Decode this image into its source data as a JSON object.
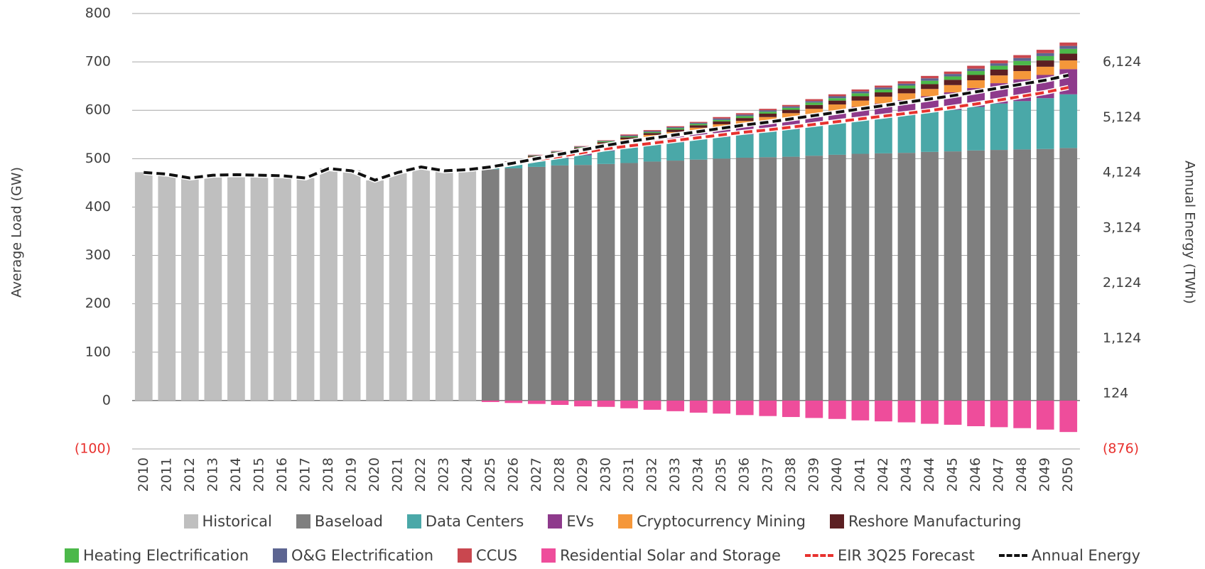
{
  "chart_data": {
    "type": "bar",
    "stacked": true,
    "ylabel": "Average Load (GW)",
    "y2label": "Annual Energy (TWh)",
    "ylim": [
      -100,
      800
    ],
    "yticks": [
      {
        "value": -100,
        "label": "(100)"
      },
      0,
      100,
      200,
      300,
      400,
      500,
      600,
      700,
      800
    ],
    "y2lim": [
      -876,
      7008
    ],
    "y2ticks": [
      {
        "value": -876,
        "label": "(876)"
      },
      124,
      {
        "value": 1124,
        "label": "1,124"
      },
      {
        "value": 2124,
        "label": "2,124"
      },
      {
        "value": 3124,
        "label": "3,124"
      },
      {
        "value": 4124,
        "label": "4,124"
      },
      {
        "value": 5124,
        "label": "5,124"
      },
      {
        "value": 6124,
        "label": "6,124"
      }
    ],
    "negative_tick_color": "#e8322f",
    "grid": true,
    "legend": "bottom",
    "categories": [
      "2010",
      "2011",
      "2012",
      "2013",
      "2014",
      "2015",
      "2016",
      "2017",
      "2018",
      "2019",
      "2020",
      "2021",
      "2022",
      "2023",
      "2024",
      "2025",
      "2026",
      "2027",
      "2028",
      "2029",
      "2030",
      "2031",
      "2032",
      "2033",
      "2034",
      "2035",
      "2036",
      "2037",
      "2038",
      "2039",
      "2040",
      "2041",
      "2042",
      "2043",
      "2044",
      "2045",
      "2046",
      "2047",
      "2048",
      "2049",
      "2050"
    ],
    "series": [
      {
        "name": "Historical",
        "color": "#bfbfbf",
        "values": [
          472,
          468,
          460,
          466,
          466,
          466,
          465,
          460,
          480,
          476,
          455,
          470,
          482,
          475,
          478,
          null,
          null,
          null,
          null,
          null,
          null,
          null,
          null,
          null,
          null,
          null,
          null,
          null,
          null,
          null,
          null,
          null,
          null,
          null,
          null,
          null,
          null,
          null,
          null,
          null,
          null
        ]
      },
      {
        "name": "Baseload",
        "color": "#7f7f7f",
        "values": [
          null,
          null,
          null,
          null,
          null,
          null,
          null,
          null,
          null,
          null,
          null,
          null,
          null,
          null,
          null,
          478,
          480,
          483,
          486,
          487,
          489,
          491,
          494,
          496,
          498,
          500,
          502,
          503,
          504,
          506,
          508,
          510,
          511,
          512,
          514,
          515,
          517,
          518,
          519,
          520,
          522
        ]
      },
      {
        "name": "Data Centers",
        "color": "#4aa8a8",
        "values": [
          null,
          null,
          null,
          null,
          null,
          null,
          null,
          null,
          null,
          null,
          null,
          null,
          null,
          null,
          null,
          3,
          8,
          12,
          15,
          20,
          27,
          32,
          36,
          38,
          42,
          45,
          48,
          53,
          57,
          62,
          66,
          70,
          74,
          78,
          82,
          86,
          90,
          96,
          100,
          105,
          111
        ]
      },
      {
        "name": "EVs",
        "color": "#8e3a8c",
        "values": [
          null,
          null,
          null,
          null,
          null,
          null,
          null,
          null,
          null,
          null,
          null,
          null,
          null,
          null,
          null,
          1,
          2,
          3,
          4,
          6,
          7,
          9,
          10,
          12,
          14,
          16,
          17,
          19,
          21,
          23,
          25,
          27,
          29,
          31,
          33,
          36,
          39,
          42,
          45,
          48,
          52
        ]
      },
      {
        "name": "Cryptocurrency Mining",
        "color": "#f5973a",
        "values": [
          null,
          null,
          null,
          null,
          null,
          null,
          null,
          null,
          null,
          null,
          null,
          null,
          null,
          null,
          null,
          2,
          3,
          5,
          6,
          7,
          8,
          8,
          9,
          9,
          10,
          10,
          11,
          11,
          12,
          12,
          13,
          13,
          14,
          14,
          15,
          15,
          16,
          16,
          17,
          17,
          18
        ]
      },
      {
        "name": "Reshore Manufacturing",
        "color": "#5c1f22",
        "values": [
          null,
          null,
          null,
          null,
          null,
          null,
          null,
          null,
          null,
          null,
          null,
          null,
          null,
          null,
          null,
          1,
          1,
          2,
          2,
          3,
          3,
          4,
          4,
          5,
          5,
          6,
          6,
          7,
          7,
          8,
          8,
          9,
          9,
          10,
          10,
          11,
          11,
          12,
          12,
          13,
          14
        ]
      },
      {
        "name": "Heating Electrification",
        "color": "#4cb84a",
        "values": [
          null,
          null,
          null,
          null,
          null,
          null,
          null,
          null,
          null,
          null,
          null,
          null,
          null,
          null,
          null,
          0,
          0,
          1,
          1,
          1,
          2,
          2,
          2,
          3,
          3,
          3,
          4,
          4,
          4,
          5,
          5,
          6,
          6,
          6,
          7,
          7,
          8,
          8,
          9,
          9,
          10
        ]
      },
      {
        "name": "O&G Electrification",
        "color": "#5d6591",
        "values": [
          null,
          null,
          null,
          null,
          null,
          null,
          null,
          null,
          null,
          null,
          null,
          null,
          null,
          null,
          null,
          0,
          0,
          1,
          1,
          1,
          1,
          2,
          2,
          2,
          2,
          3,
          3,
          3,
          3,
          3,
          4,
          4,
          4,
          4,
          5,
          5,
          5,
          5,
          6,
          6,
          6
        ]
      },
      {
        "name": "CCUS",
        "color": "#c9474f",
        "values": [
          null,
          null,
          null,
          null,
          null,
          null,
          null,
          null,
          null,
          null,
          null,
          null,
          null,
          null,
          null,
          0,
          0,
          1,
          1,
          1,
          1,
          2,
          2,
          2,
          2,
          3,
          3,
          3,
          3,
          4,
          4,
          4,
          4,
          5,
          5,
          5,
          6,
          6,
          6,
          7,
          7
        ]
      },
      {
        "name": "Residential Solar and Storage",
        "color": "#ee4d9b",
        "values": [
          null,
          null,
          null,
          null,
          null,
          null,
          null,
          null,
          null,
          null,
          null,
          null,
          null,
          null,
          null,
          -3,
          -5,
          -7,
          -9,
          -12,
          -13,
          -16,
          -19,
          -22,
          -25,
          -27,
          -30,
          -32,
          -34,
          -36,
          -38,
          -41,
          -43,
          -45,
          -48,
          -50,
          -53,
          -55,
          -57,
          -60,
          -65
        ]
      },
      {
        "name": "EIR 3Q25 Forecast",
        "type": "line",
        "axis": "y2",
        "dashed": true,
        "color": "#e8322f",
        "values": [
          null,
          null,
          null,
          null,
          null,
          null,
          null,
          null,
          null,
          null,
          null,
          null,
          null,
          null,
          null,
          4230,
          4290,
          4360,
          4420,
          4490,
          4560,
          4610,
          4660,
          4710,
          4760,
          4810,
          4860,
          4900,
          4950,
          5000,
          5050,
          5100,
          5150,
          5200,
          5250,
          5310,
          5370,
          5440,
          5510,
          5580,
          5670
        ]
      },
      {
        "name": "Annual Energy",
        "type": "line",
        "axis": "y2",
        "dashed": true,
        "color": "#111111",
        "values": [
          4130,
          4100,
          4030,
          4080,
          4090,
          4080,
          4070,
          4030,
          4200,
          4160,
          3990,
          4130,
          4230,
          4160,
          4180,
          4230,
          4300,
          4380,
          4460,
          4540,
          4620,
          4690,
          4750,
          4810,
          4870,
          4930,
          4990,
          5040,
          5100,
          5160,
          5220,
          5280,
          5340,
          5400,
          5460,
          5520,
          5590,
          5660,
          5730,
          5800,
          5890
        ]
      }
    ]
  }
}
